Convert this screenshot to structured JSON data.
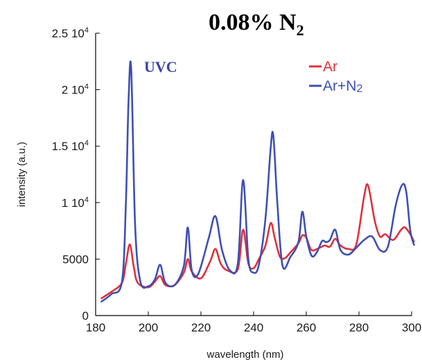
{
  "chart_data": {
    "type": "line",
    "title": "0.08% N",
    "title_subscript": "2",
    "annotation": "UVC",
    "xlabel": "wavelength (nm)",
    "ylabel": "intensity (a.u.)",
    "xlim": [
      180,
      300
    ],
    "ylim": [
      0,
      25000
    ],
    "x_ticks": [
      180,
      200,
      220,
      240,
      260,
      280,
      300
    ],
    "y_ticks": [
      {
        "value": 0,
        "mantissa": "0",
        "exp": ""
      },
      {
        "value": 5000,
        "mantissa": "5000",
        "exp": ""
      },
      {
        "value": 10000,
        "mantissa": "1 10",
        "exp": "4"
      },
      {
        "value": 15000,
        "mantissa": "1.5 10",
        "exp": "4"
      },
      {
        "value": 20000,
        "mantissa": "2 10",
        "exp": "4"
      },
      {
        "value": 25000,
        "mantissa": "2.5 10",
        "exp": "4"
      }
    ],
    "grid": false,
    "legend_position": "top-right",
    "series": [
      {
        "name": "Ar",
        "color": "#e0303a",
        "x": [
          182,
          186,
          190,
          191.5,
          193,
          194.5,
          196,
          200,
          202.5,
          204.5,
          206.5,
          210,
          213.5,
          215,
          216.5,
          220,
          223.5,
          225.5,
          227.5,
          230,
          234,
          236,
          238,
          240,
          242,
          244.5,
          246.5,
          248,
          250,
          252,
          254,
          257,
          258.5,
          260,
          262,
          265,
          267,
          269,
          271,
          273,
          276,
          279,
          282,
          283.5,
          286,
          288,
          290,
          293,
          296,
          297.5,
          299.5,
          301
        ],
        "y": [
          1500,
          2100,
          2900,
          4600,
          6300,
          4300,
          2900,
          2500,
          3000,
          3500,
          2700,
          2700,
          3800,
          5000,
          3900,
          3300,
          4800,
          5900,
          4600,
          4000,
          4100,
          7600,
          4600,
          4200,
          5000,
          6200,
          8200,
          6900,
          5200,
          5100,
          5600,
          6400,
          7100,
          6900,
          5800,
          6000,
          6200,
          6100,
          6800,
          6200,
          5900,
          6300,
          10600,
          11500,
          8400,
          7000,
          7200,
          6700,
          7600,
          7800,
          7200,
          6500
        ]
      },
      {
        "name": "Ar+N",
        "name_subscript": "2",
        "color": "#3d4fb5",
        "x": [
          182,
          186,
          190,
          191.5,
          192.5,
          193.5,
          195,
          197,
          200,
          202.5,
          204.5,
          206.5,
          210,
          213.5,
          215,
          216.5,
          219,
          223,
          225.5,
          228,
          231,
          234,
          236,
          238,
          240,
          242,
          244.5,
          246.5,
          247.5,
          249,
          251,
          254,
          257,
          258.5,
          260,
          262,
          264,
          266,
          267.5,
          269,
          271,
          273,
          276,
          279,
          282,
          285,
          288,
          291,
          294,
          296.5,
          298,
          299.5,
          301
        ],
        "y": [
          1200,
          1900,
          3000,
          10000,
          19000,
          21900,
          8000,
          3000,
          2600,
          3200,
          4500,
          2900,
          2700,
          4400,
          7800,
          4000,
          3700,
          6900,
          8800,
          5800,
          4000,
          4600,
          12000,
          5000,
          3800,
          4500,
          8600,
          14900,
          15900,
          10000,
          4400,
          5200,
          6500,
          9200,
          7000,
          5300,
          5600,
          6600,
          6500,
          6700,
          7600,
          5800,
          5400,
          6000,
          6700,
          7000,
          5800,
          6100,
          9800,
          11600,
          10900,
          7500,
          6200
        ]
      }
    ]
  }
}
